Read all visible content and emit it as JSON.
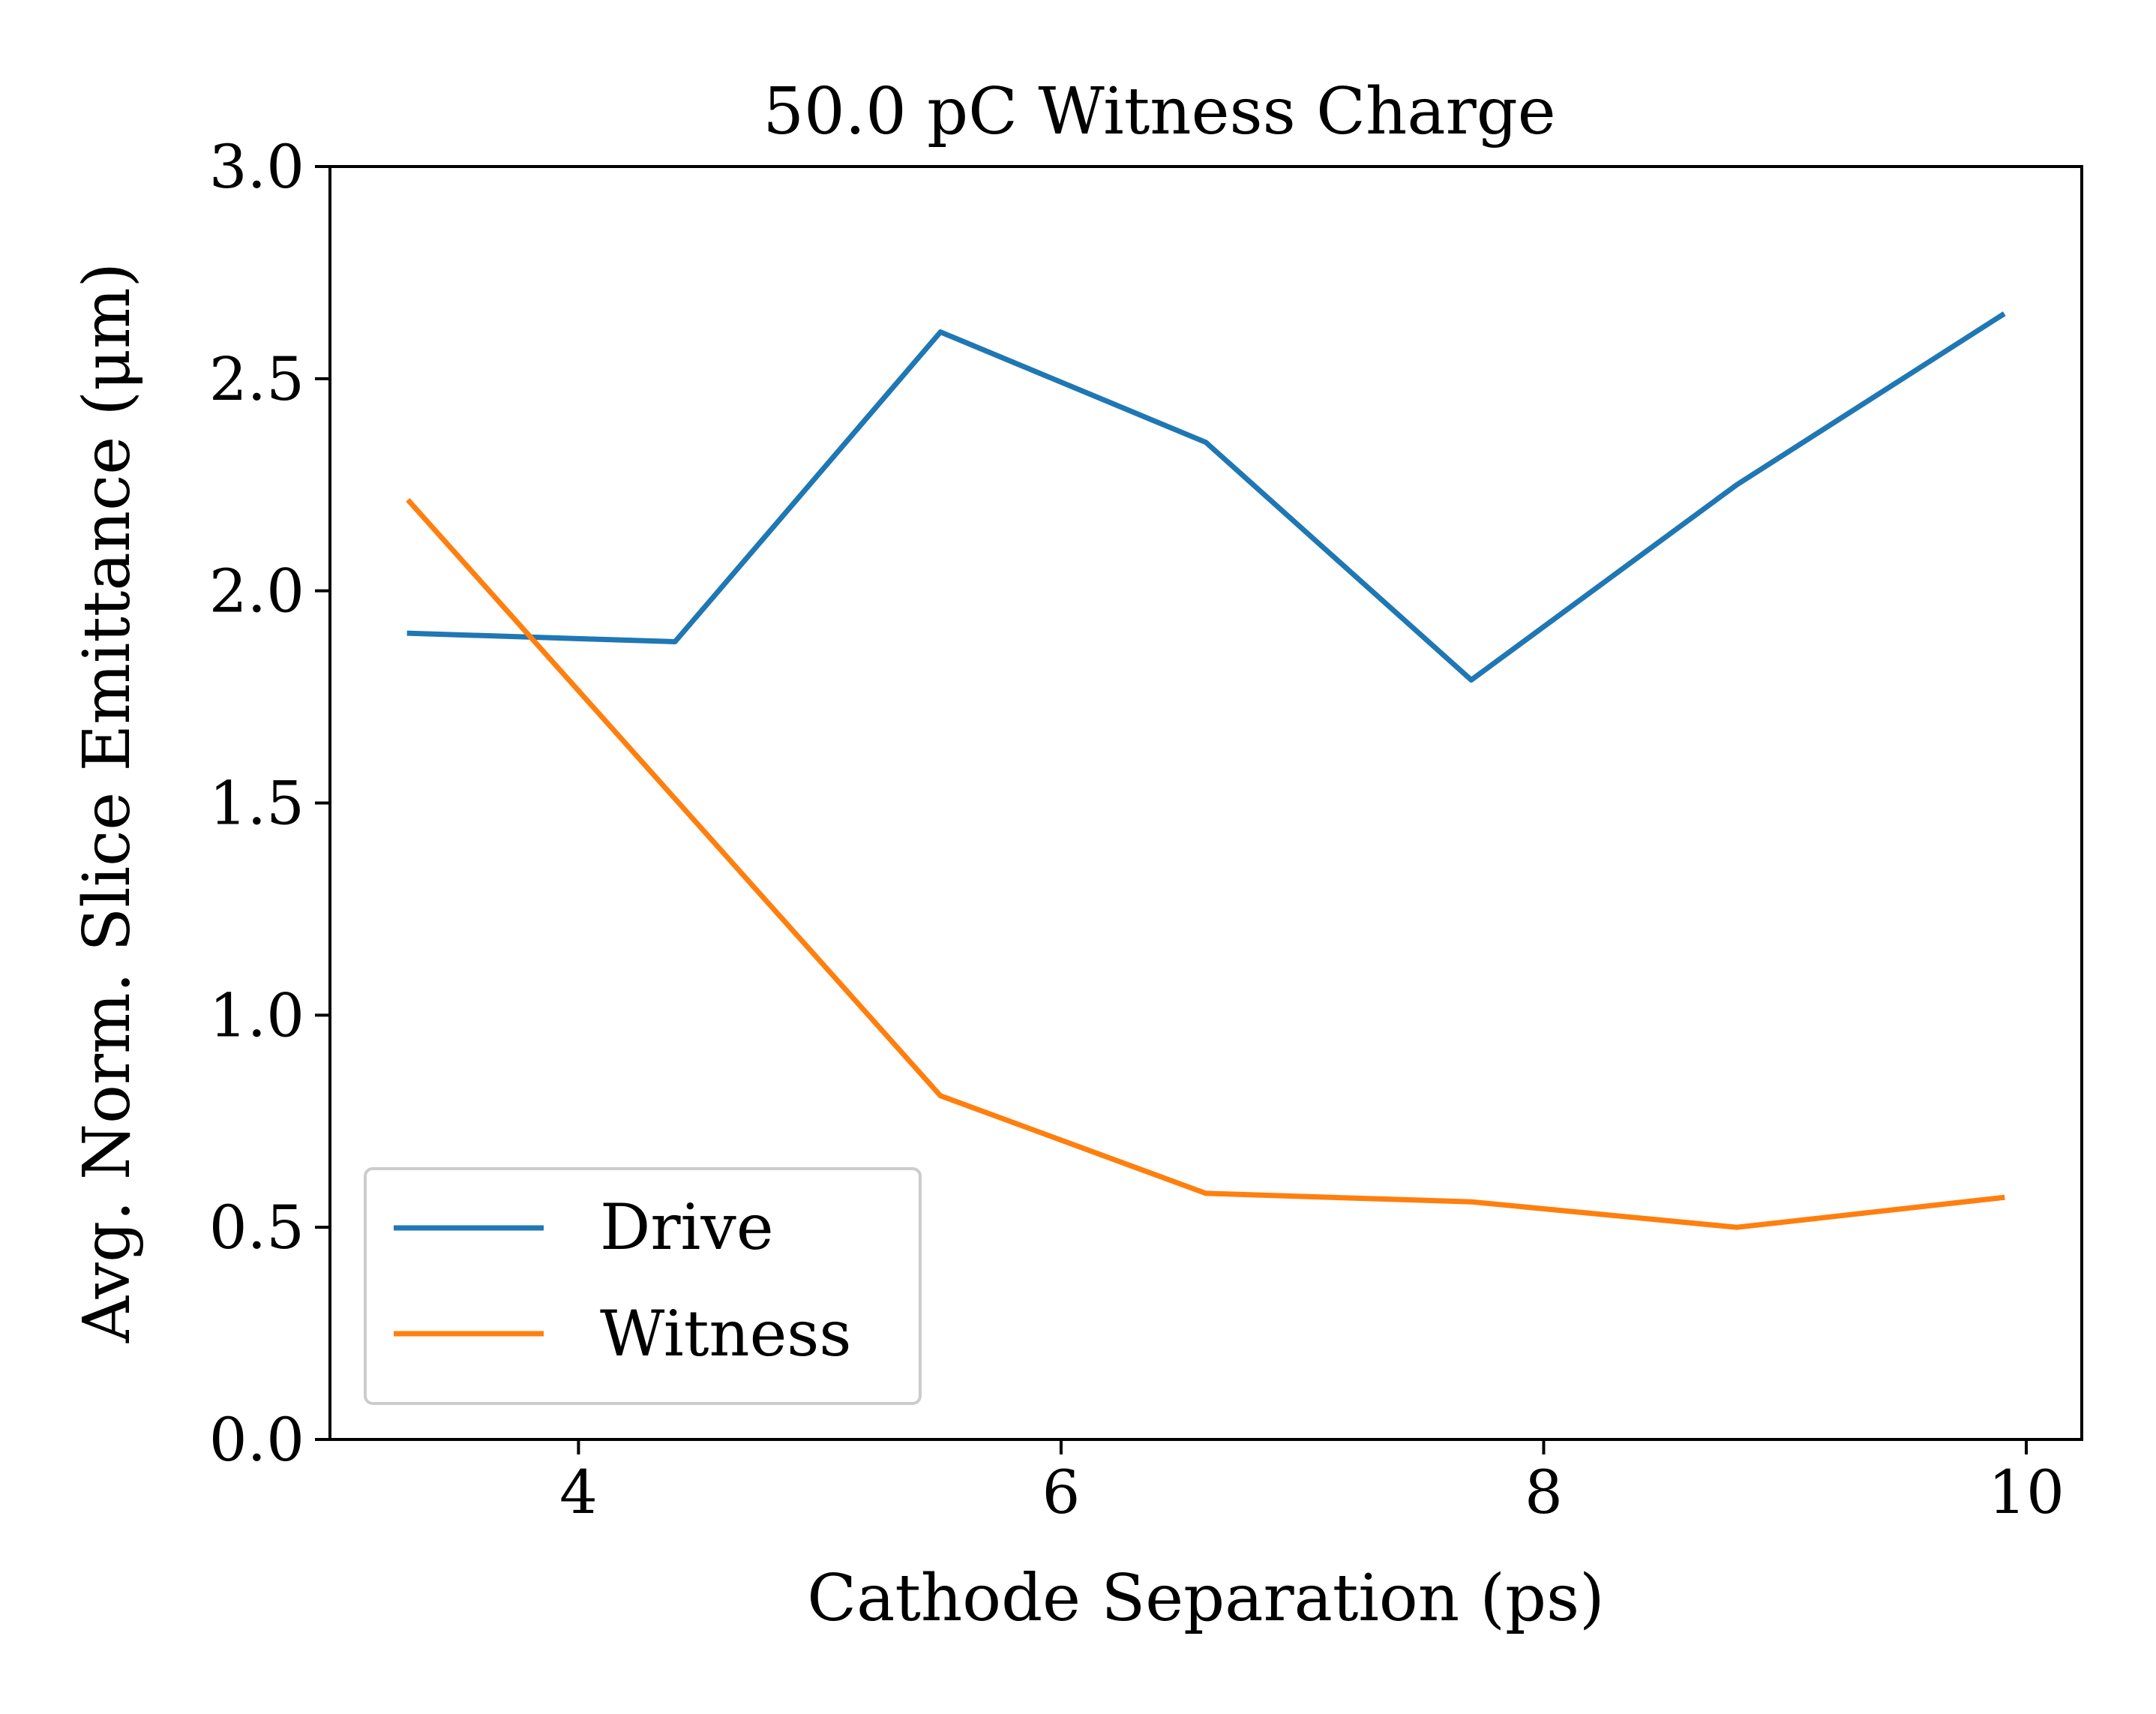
{
  "chart_data": {
    "type": "line",
    "title": "50.0 pC Witness Charge",
    "xlabel": "Cathode Separation (ps)",
    "ylabel": "Avg. Norm. Slice Emittance (μm)",
    "xlim": [
      2.97,
      10.23
    ],
    "ylim": [
      0.0,
      3.0
    ],
    "xticks": [
      4,
      6,
      8,
      10
    ],
    "yticks": [
      0.0,
      0.5,
      1.0,
      1.5,
      2.0,
      2.5,
      3.0
    ],
    "xtick_labels": [
      "4",
      "6",
      "8",
      "10"
    ],
    "ytick_labels": [
      "0.0",
      "0.5",
      "1.0",
      "1.5",
      "2.0",
      "2.5",
      "3.0"
    ],
    "grid": false,
    "legend_position": "lower-left",
    "x": [
      3.3,
      4.4,
      5.5,
      6.6,
      7.7,
      8.8,
      9.9
    ],
    "series": [
      {
        "name": "Drive",
        "color": "#1f77b4",
        "values": [
          1.9,
          1.88,
          2.61,
          2.35,
          1.79,
          2.25,
          2.65
        ]
      },
      {
        "name": "Witness",
        "color": "#ff7f0e",
        "values": [
          2.21,
          1.51,
          0.81,
          0.58,
          0.56,
          0.5,
          0.57
        ]
      }
    ]
  }
}
